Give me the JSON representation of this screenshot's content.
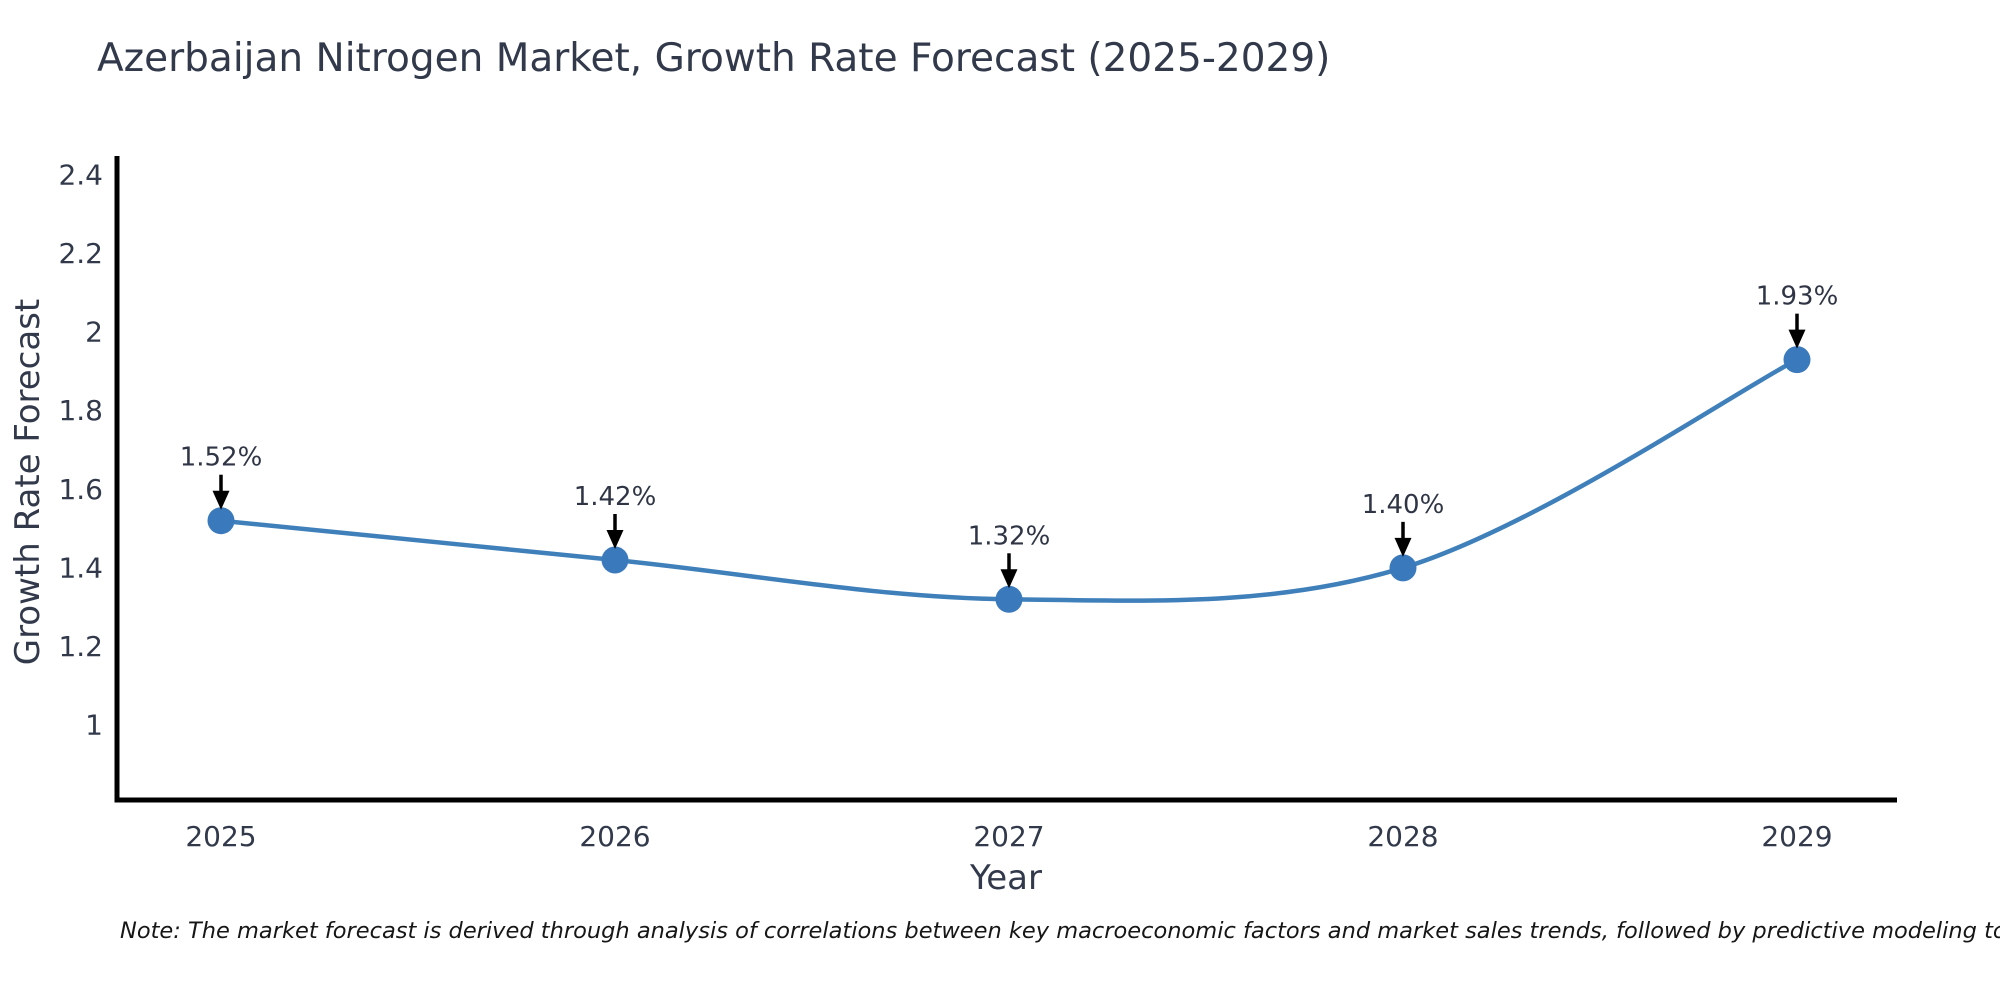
{
  "chart_data": {
    "type": "line",
    "title": "Azerbaijan Nitrogen Market, Growth Rate Forecast (2025-2029)",
    "xlabel": "Year",
    "ylabel": "Growth Rate Forecast",
    "x": [
      2025,
      2026,
      2027,
      2028,
      2029
    ],
    "values": [
      1.52,
      1.42,
      1.32,
      1.4,
      1.93
    ],
    "point_labels": [
      "1.52%",
      "1.42%",
      "1.32%",
      "1.40%",
      "1.93%"
    ],
    "xtick_labels": [
      "2025",
      "2026",
      "2027",
      "2028",
      "2029"
    ],
    "yticks": [
      1,
      1.2,
      1.4,
      1.6,
      1.8,
      2,
      2.2,
      2.4
    ],
    "ytick_labels": [
      "1",
      "1.2",
      "1.4",
      "1.6",
      "1.8",
      "2",
      "2.2",
      "2.4"
    ],
    "ylim": [
      0.81,
      2.44
    ],
    "grid": false,
    "legend": "none",
    "line_color": "#3f7fba",
    "marker_color": "#3a7abc",
    "axis_color": "#000000",
    "text_color": "#31394b",
    "annotation_color": "#2f3545",
    "arrow_color": "#000000"
  },
  "note": {
    "text": "Note: The market forecast is derived through analysis of correlations between key macroeconomic factors and market sales trends, followed by predictive modeling to project future sales"
  }
}
